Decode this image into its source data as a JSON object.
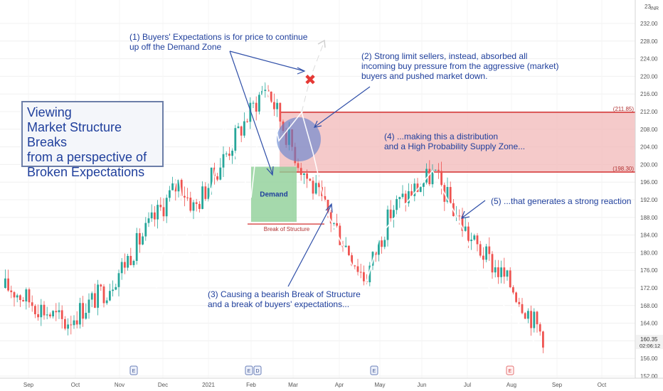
{
  "currency": "INR",
  "title_box": {
    "line1": "Viewing",
    "line2": "Market Structure Breaks",
    "line3": "from a perspective of",
    "line4": "Broken Expectations"
  },
  "annotations": {
    "a1_line1": "(1) Buyers' Expectations is for price to continue",
    "a1_line2": "up off the Demand Zone",
    "a2_line1": "(2) Strong limit sellers, instead, absorbed all",
    "a2_line2": "incoming buy pressure from the aggressive (market)",
    "a2_line3": "buyers and pushed market down.",
    "a3_line1": "(3) Causing a bearish Break of Structure",
    "a3_line2": "and a break of buyers' expectations...",
    "a4_line1": "(4) ...making this a distribution",
    "a4_line2": "and a High Probability Supply Zone...",
    "a5": "(5) ...that generates a strong reaction",
    "demand": "Demand",
    "break_of_structure": "Break of Structure",
    "x_mark": "✖"
  },
  "zone_labels": {
    "top": "(211.85)",
    "bottom": "(198.30)"
  },
  "price_tags": {
    "last": "160.35",
    "timer": "02:06:12",
    "top_partial": "23"
  },
  "event_markers": [
    "E",
    "E",
    "D",
    "E",
    "E"
  ],
  "colors": {
    "bull": "#26a69a",
    "bear": "#ef5350",
    "supply_fill": "#f2b8b8",
    "supply_line": "#d32f2f",
    "demand_fill": "#8fcf97",
    "circle_fill": "#5b7fcf",
    "text_blue": "#1f3f9c"
  },
  "chart_data": {
    "type": "candlestick",
    "y_axis": {
      "ticks": [
        "232.00",
        "228.00",
        "224.00",
        "220.00",
        "216.00",
        "212.00",
        "208.00",
        "204.00",
        "200.00",
        "196.00",
        "192.00",
        "188.00",
        "184.00",
        "180.00",
        "176.00",
        "172.00",
        "168.00",
        "164.00",
        "160.00",
        "156.00",
        "152.00"
      ],
      "range": [
        152,
        234
      ]
    },
    "x_axis": {
      "ticks": [
        "Sep",
        "Oct",
        "Nov",
        "Dec",
        "2021",
        "Feb",
        "Mar",
        "Apr",
        "May",
        "Jun",
        "Jul",
        "Aug",
        "Sep",
        "Oct"
      ]
    },
    "supply_zone": {
      "top": 211.85,
      "bottom": 198.3
    },
    "demand_zone": {
      "top": 199.5,
      "bottom": 187.0
    },
    "break_of_structure_level": 186.5,
    "last_price": 160.35,
    "anchor_path": [
      {
        "label": "Sep",
        "value": 172
      },
      {
        "label": "Oct",
        "value": 164
      },
      {
        "label": "Nov",
        "value": 172
      },
      {
        "label": "Dec",
        "value": 196
      },
      {
        "label": "2021",
        "value": 190
      },
      {
        "label": "Feb",
        "value": 218
      },
      {
        "label": "Mar",
        "value": 200
      },
      {
        "label": "Apr",
        "value": 174
      },
      {
        "label": "May",
        "value": 190
      },
      {
        "label": "Jun",
        "value": 198
      },
      {
        "label": "Jul",
        "value": 183
      },
      {
        "label": "Aug",
        "value": 172
      },
      {
        "label": "Aug-end",
        "value": 160.35
      }
    ]
  }
}
